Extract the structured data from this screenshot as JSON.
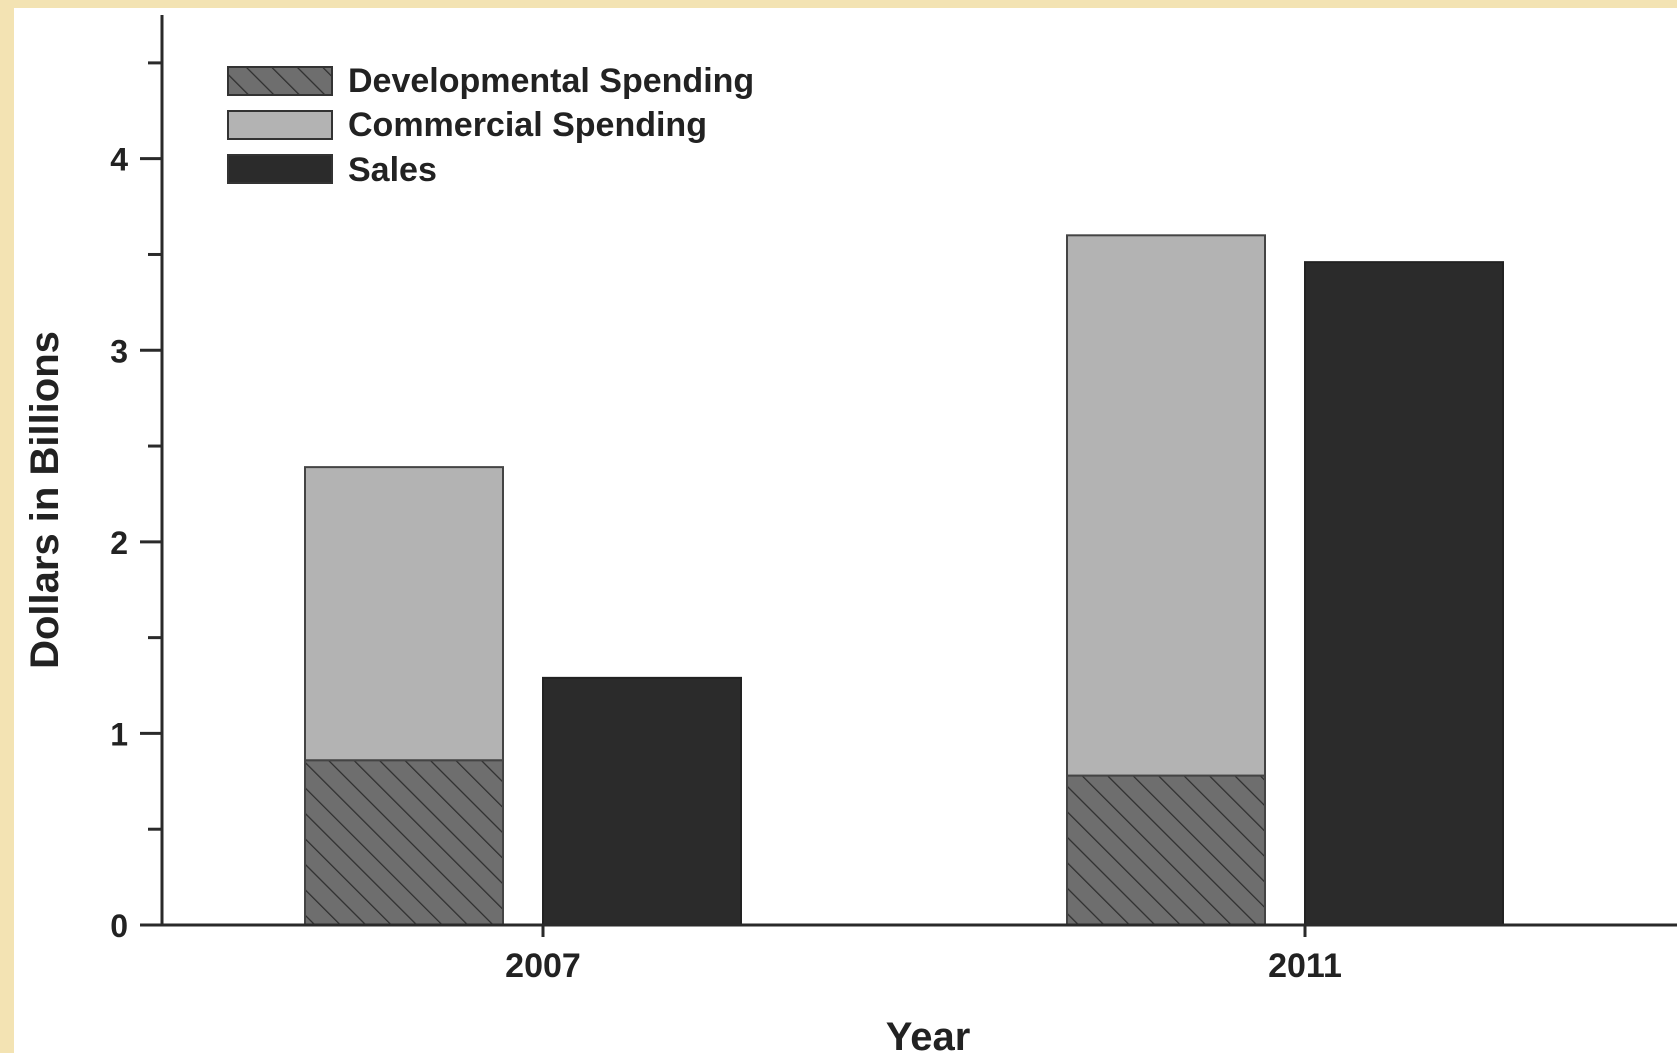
{
  "colors": {
    "frame_bg": "#f3e3b3",
    "plot_bg": "#ffffff",
    "developmental": "#6e6e6e",
    "commercial": "#b3b3b3",
    "sales": "#2b2b2b",
    "axis": "#2a2a2a"
  },
  "chart_data": {
    "type": "bar",
    "xlabel": "Year",
    "ylabel": "Dollars in Billions",
    "categories": [
      "2007",
      "2011"
    ],
    "ylim": [
      0,
      4.75
    ],
    "yticks": [
      0,
      1,
      2,
      3,
      4
    ],
    "grid": false,
    "legend_position": "top-left",
    "stacked_series": [
      {
        "name": "Developmental Spending",
        "values": [
          0.86,
          0.78
        ],
        "pattern": "hatched"
      },
      {
        "name": "Commercial Spending",
        "values": [
          1.53,
          2.82
        ],
        "pattern": "solid"
      }
    ],
    "side_series": {
      "name": "Sales",
      "values": [
        1.29,
        3.46
      ],
      "pattern": "solid"
    },
    "legend": [
      "Developmental Spending",
      "Commercial Spending",
      "Sales"
    ]
  }
}
